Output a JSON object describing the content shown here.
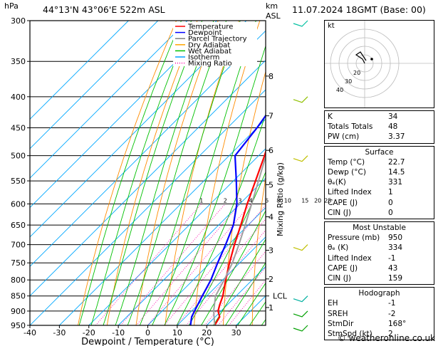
{
  "header": {
    "station": "44°13'N  43°06'E  522m  ASL",
    "datetime": "11.07.2024  18GMT  (Base: 00)",
    "hpa_unit": "hPa",
    "km_unit": "km",
    "asl_unit": "ASL"
  },
  "legend": {
    "items": [
      {
        "label": "Temperature",
        "color": "#ff0000",
        "style": "solid"
      },
      {
        "label": "Dewpoint",
        "color": "#0000ff",
        "style": "solid"
      },
      {
        "label": "Parcel Trajectory",
        "color": "#808080",
        "style": "solid"
      },
      {
        "label": "Dry Adiabat",
        "color": "#ffa500",
        "style": "solid"
      },
      {
        "label": "Wet Adiabat",
        "color": "#00c000",
        "style": "solid"
      },
      {
        "label": "Isotherm",
        "color": "#00a0ff",
        "style": "solid"
      },
      {
        "label": "Mixing Ratio",
        "color": "#ff00aa",
        "style": "dotted"
      }
    ]
  },
  "chart_data": {
    "type": "line",
    "xlabel": "Dewpoint / Temperature (°C)",
    "xlim": [
      -40,
      40
    ],
    "x_ticks": [
      -40,
      -30,
      -20,
      -10,
      0,
      10,
      20,
      30
    ],
    "pressure_levels": [
      300,
      350,
      400,
      450,
      500,
      550,
      600,
      650,
      700,
      750,
      800,
      850,
      900,
      950
    ],
    "ylim_hpa": [
      950,
      300
    ],
    "y_scale": "log",
    "km_ticks": [
      {
        "km": "1",
        "p": 888
      },
      {
        "km": "2",
        "p": 797
      },
      {
        "km": "3",
        "p": 715
      },
      {
        "km": "4",
        "p": 630
      },
      {
        "km": "5",
        "p": 558
      },
      {
        "km": "6",
        "p": 490
      },
      {
        "km": "7",
        "p": 430
      },
      {
        "km": "8",
        "p": 370
      }
    ],
    "lcl_label": "LCL",
    "lcl_p": 850,
    "mixing_ratio_label": "Mixing Ratio (g/kg)",
    "mixing_ratio_values": [
      "1",
      "2",
      "3",
      "4",
      "6",
      "8",
      "10",
      "15",
      "20",
      "25"
    ],
    "series": [
      {
        "name": "Temperature",
        "p": [
          950,
          920,
          900,
          880,
          850,
          800,
          750,
          700,
          650,
          600,
          550,
          500,
          450,
          400,
          350,
          300
        ],
        "t": [
          22.7,
          21.5,
          19.0,
          17.5,
          15.5,
          11.0,
          6.5,
          2.0,
          -2.5,
          -7.5,
          -12.5,
          -18.0,
          -24.5,
          -31.5,
          -39.0,
          -48.0
        ]
      },
      {
        "name": "Dewpoint",
        "p": [
          950,
          920,
          900,
          850,
          800,
          750,
          700,
          650,
          600,
          550,
          500,
          450,
          400,
          350,
          300
        ],
        "t": [
          14.5,
          12.0,
          11.0,
          8.5,
          6.0,
          2.5,
          -1.0,
          -5.0,
          -11.0,
          -19.0,
          -28.0,
          -30.0,
          -33.0,
          -42.0,
          -52.0
        ]
      },
      {
        "name": "Parcel Trajectory",
        "p": [
          950,
          900,
          850,
          800,
          750,
          700,
          650,
          600,
          550,
          500,
          450,
          400,
          350,
          300
        ],
        "t": [
          22.7,
          17.5,
          13.0,
          10.5,
          7.5,
          3.5,
          -1.0,
          -6.0,
          -11.5,
          -17.5,
          -24.5,
          -32.5,
          -41.5,
          -51.0
        ]
      }
    ]
  },
  "hodograph": {
    "label": "kt",
    "ring_labels": [
      "40",
      "30",
      "20"
    ]
  },
  "indices": {
    "k": {
      "label": "K",
      "value": "34"
    },
    "totals": {
      "label": "Totals Totals",
      "value": "48"
    },
    "pw": {
      "label": "PW (cm)",
      "value": "3.37"
    }
  },
  "surface": {
    "title": "Surface",
    "rows": [
      {
        "label": "Temp (°C)",
        "value": "22.7"
      },
      {
        "label": "Dewp (°C)",
        "value": "14.5"
      },
      {
        "label": "θₑ(K)",
        "value": "331"
      },
      {
        "label": "Lifted Index",
        "value": "1"
      },
      {
        "label": "CAPE (J)",
        "value": "0"
      },
      {
        "label": "CIN (J)",
        "value": "0"
      }
    ]
  },
  "most_unstable": {
    "title": "Most Unstable",
    "rows": [
      {
        "label": "Pressure (mb)",
        "value": "950"
      },
      {
        "label": "θₑ (K)",
        "value": "334"
      },
      {
        "label": "Lifted Index",
        "value": "-1"
      },
      {
        "label": "CAPE (J)",
        "value": "43"
      },
      {
        "label": "CIN (J)",
        "value": "159"
      }
    ]
  },
  "hodograph_table": {
    "title": "Hodograph",
    "rows": [
      {
        "label": "EH",
        "value": "-1"
      },
      {
        "label": "SREH",
        "value": "-2"
      },
      {
        "label": "StmDir",
        "value": "168°"
      },
      {
        "label": "StmSpd (kt)",
        "value": "2"
      }
    ]
  },
  "credit": "© weatheronline.co.uk"
}
